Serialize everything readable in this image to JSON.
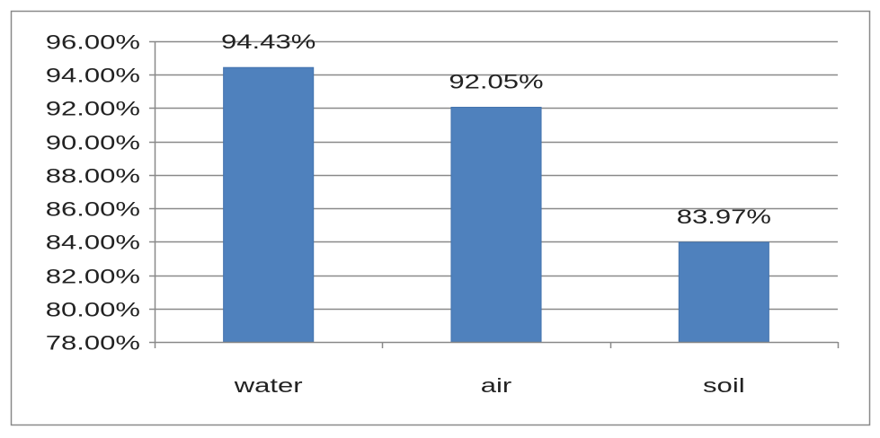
{
  "chart_data": {
    "type": "bar",
    "title": "",
    "xlabel": "",
    "ylabel": "",
    "categories": [
      "water",
      "air",
      "soil"
    ],
    "values": [
      94.43,
      92.05,
      83.97
    ],
    "data_labels": [
      "94.43%",
      "92.05%",
      "83.97%"
    ],
    "ylim": [
      78,
      96
    ],
    "y_ticks": [
      78,
      80,
      82,
      84,
      86,
      88,
      90,
      92,
      94,
      96
    ],
    "y_tick_labels": [
      "78.00%",
      "80.00%",
      "82.00%",
      "84.00%",
      "86.00%",
      "88.00%",
      "90.00%",
      "92.00%",
      "94.00%",
      "96.00%"
    ],
    "grid": true,
    "legend": "none",
    "colors": {
      "bar": "#4F81BD",
      "bar_border": "#4373AE",
      "gridline": "#898989",
      "axis": "#898989",
      "frame": "#898989",
      "text": "#222222",
      "background": "#FFFFFF"
    }
  }
}
